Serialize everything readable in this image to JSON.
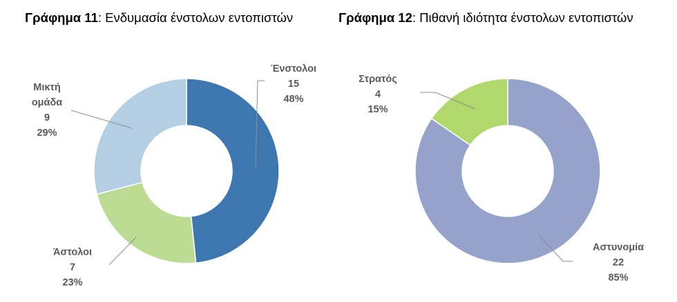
{
  "chart_data": [
    {
      "type": "pie",
      "variant": "donut",
      "title_number": "Γράφημα 11",
      "title_text": ": Ενδυμασία ένστολων εντοπιστών",
      "categories": [
        "Ένστολοι",
        "Άστολοι",
        "Μικτή ομάδα"
      ],
      "values": [
        15,
        7,
        9
      ],
      "percent_labels": [
        "48%",
        "23%",
        "29%"
      ],
      "colors": [
        "#3e77b0",
        "#bcdc93",
        "#b4cfe4"
      ],
      "label_lines": [
        [
          "Ένστολοι"
        ],
        [
          "Άστολοι"
        ],
        [
          "Μικτή",
          "ομάδα"
        ]
      ],
      "start_angle_deg": 0,
      "direction": "clockwise",
      "legend": "none"
    },
    {
      "type": "pie",
      "variant": "donut",
      "title_number": "Γράφημα 12",
      "title_text": ": Πιθανή ιδιότητα ένστολων εντοπιστών",
      "categories": [
        "Αστυνομία",
        "Στρατός"
      ],
      "values": [
        22,
        4
      ],
      "percent_labels": [
        "85%",
        "15%"
      ],
      "colors": [
        "#95a3ca",
        "#b1d86c"
      ],
      "label_lines": [
        [
          "Αστυνομία"
        ],
        [
          "Στρατός"
        ]
      ],
      "start_angle_deg": 0,
      "direction": "clockwise",
      "legend": "none"
    }
  ]
}
